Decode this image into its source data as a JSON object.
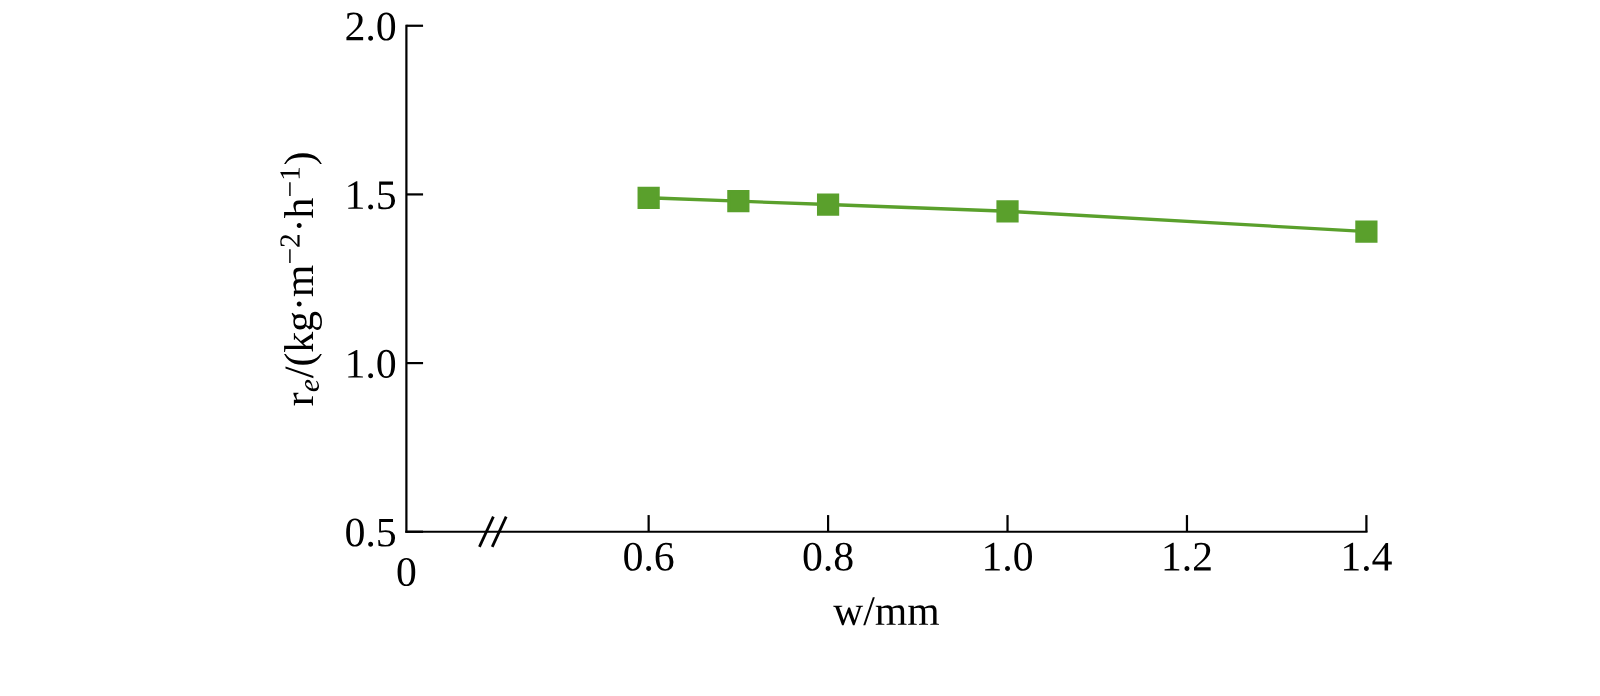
{
  "chart_data": {
    "type": "line",
    "x": [
      0.6,
      0.7,
      0.8,
      1.0,
      1.4
    ],
    "series": [
      {
        "color": "#5aa02c",
        "values": [
          1.49,
          1.48,
          1.47,
          1.45,
          1.39
        ]
      }
    ],
    "marker": "square",
    "xlim": [
      0.33,
      1.4
    ],
    "xticks": [
      0.6,
      0.8,
      {
        "value": 1.0,
        "label": "1.0"
      },
      1.2,
      1.4
    ],
    "ylim": [
      0.5,
      2.0
    ],
    "yticks": [
      0.5,
      {
        "value": 1.0,
        "label": "1.0"
      },
      1.5,
      {
        "value": 2.0,
        "label": "2.0"
      }
    ],
    "xlabel": "w/mm",
    "ylabel": "r$_{e}$/(kg·m$^{−2}$·h$^{−1}$)",
    "annotations": [
      "0"
    ]
  }
}
